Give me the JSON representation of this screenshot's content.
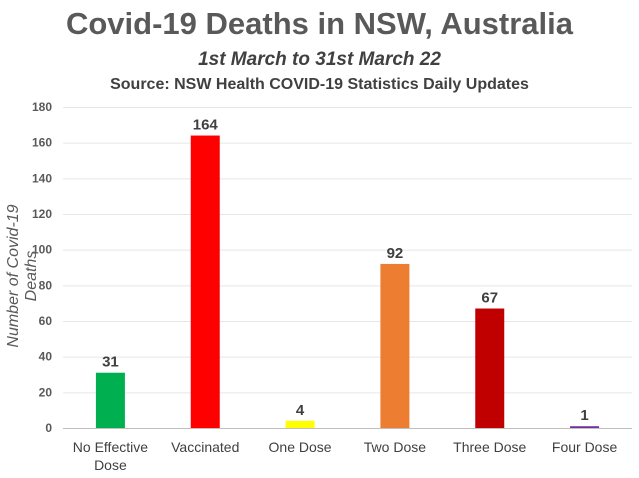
{
  "chart_data": {
    "type": "bar",
    "title": "Covid-19 Deaths in NSW, Australia",
    "subtitle": "1st March to 31st March 22",
    "source": "Source: NSW Health COVID-19 Statistics Daily Updates",
    "xlabel": "",
    "ylabel": "Number of Covid-19 Deaths",
    "ylim": [
      0,
      180
    ],
    "yticks": [
      0,
      20,
      40,
      60,
      80,
      100,
      120,
      140,
      160,
      180
    ],
    "grid": true,
    "categories": [
      [
        "No Effective",
        "Dose"
      ],
      [
        "Vaccinated"
      ],
      [
        "One Dose"
      ],
      [
        "Two Dose"
      ],
      [
        "Three Dose"
      ],
      [
        "Four Dose"
      ]
    ],
    "values": [
      31,
      164,
      4,
      92,
      67,
      1
    ],
    "colors": [
      "#00b050",
      "#ff0000",
      "#ffff00",
      "#ed7d31",
      "#c00000",
      "#7030a0"
    ]
  }
}
